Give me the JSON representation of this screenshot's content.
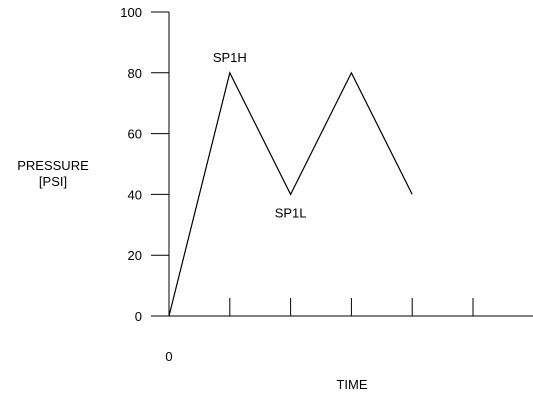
{
  "chart_data": {
    "type": "line",
    "xlabel": "TIME",
    "ylabel_line1": "PRESSURE",
    "ylabel_line2": "[PSI]",
    "ylim": [
      0,
      100
    ],
    "xlim": [
      0,
      6
    ],
    "y_ticks": [
      0,
      20,
      40,
      60,
      80,
      100
    ],
    "y_tick_labels": [
      "0",
      "20",
      "40",
      "60",
      "80",
      "100"
    ],
    "x_ticks": [
      0,
      1,
      2,
      3,
      4,
      5
    ],
    "x_tick_labels": [
      "0"
    ],
    "grid": false,
    "series": [
      {
        "x": [
          0,
          1,
          2,
          3,
          4
        ],
        "y": [
          0,
          80,
          40,
          80,
          40
        ]
      }
    ],
    "annotations": [
      {
        "text": "SP1H",
        "x": 1,
        "y": 80
      },
      {
        "text": "SP1L",
        "x": 2,
        "y": 40
      }
    ],
    "colors": {
      "line": "#000000",
      "axis": "#000000"
    }
  }
}
